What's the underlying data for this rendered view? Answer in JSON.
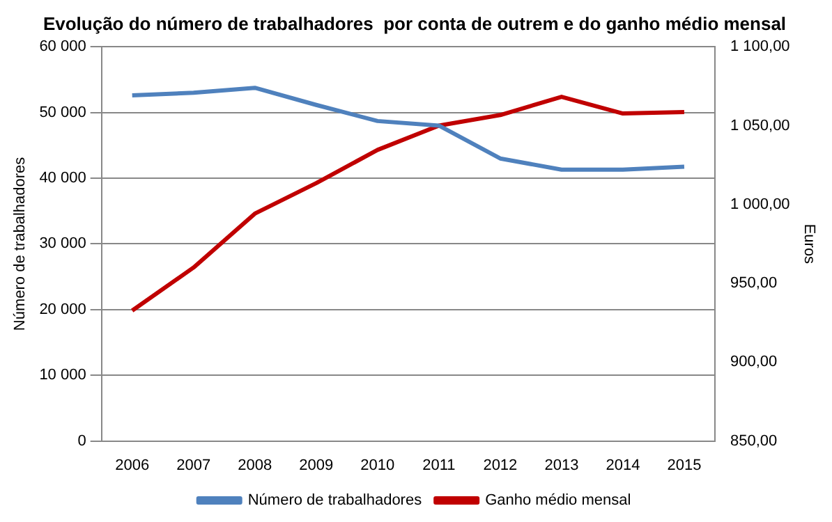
{
  "chart_data": {
    "type": "line",
    "title": "Evolução do número de trabalhadores  por conta de outrem e do ganho médio mensal",
    "categories": [
      "2006",
      "2007",
      "2008",
      "2009",
      "2010",
      "2011",
      "2012",
      "2013",
      "2014",
      "2015"
    ],
    "series": [
      {
        "name": "Número de trabalhadores",
        "color": "#4f81bd",
        "values": [
          52600,
          53000,
          53750,
          51150,
          48700,
          48000,
          43000,
          41300,
          41300,
          41750
        ]
      },
      {
        "name": "Ganho médio mensal",
        "color": "#c00000",
        "axis": "y2",
        "values": [
          932.7,
          960,
          994.2,
          1013.5,
          1034.6,
          1050,
          1056.7,
          1068.3,
          1057.7,
          1058.6
        ]
      }
    ],
    "ylabel": "Número de trabalhadores",
    "y2label": "Euros",
    "ylim": [
      0,
      60000
    ],
    "yticks": [
      {
        "value": 0,
        "label": "0"
      },
      {
        "value": 10000,
        "label": "10 000"
      },
      {
        "value": 20000,
        "label": "20 000"
      },
      {
        "value": 30000,
        "label": "30 000"
      },
      {
        "value": 40000,
        "label": "40 000"
      },
      {
        "value": 50000,
        "label": "50 000"
      },
      {
        "value": 60000,
        "label": "60 000"
      }
    ],
    "y2lim": [
      850,
      1100
    ],
    "y2ticks": [
      {
        "value": 850,
        "label": "850,00"
      },
      {
        "value": 900,
        "label": "900,00"
      },
      {
        "value": 950,
        "label": "950,00"
      },
      {
        "value": 1000,
        "label": "1 000,00"
      },
      {
        "value": 1050,
        "label": "1 050,00"
      },
      {
        "value": 1100,
        "label": "1 100,00"
      }
    ],
    "grid": "y",
    "legend": "bottom",
    "marker": "none",
    "line_style": "solid"
  }
}
